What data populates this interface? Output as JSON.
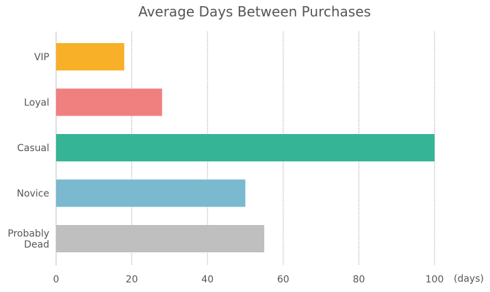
{
  "chart_data": {
    "type": "bar",
    "orientation": "horizontal",
    "title": "Average Days Between Purchases",
    "xlabel": "(days)",
    "ylabel": "",
    "xlim": [
      0,
      100
    ],
    "x_ticks": [
      0,
      20,
      40,
      60,
      80,
      100
    ],
    "grid": "vertical dotted",
    "categories": [
      [
        "VIP"
      ],
      [
        "Loyal"
      ],
      [
        "Casual"
      ],
      [
        "Novice"
      ],
      [
        "Probably",
        "Dead"
      ]
    ],
    "values": [
      18,
      28,
      100,
      50,
      55
    ],
    "colors": [
      "#f7b027",
      "#f08080",
      "#35b595",
      "#7ab9ce",
      "#bfbfbf"
    ]
  }
}
